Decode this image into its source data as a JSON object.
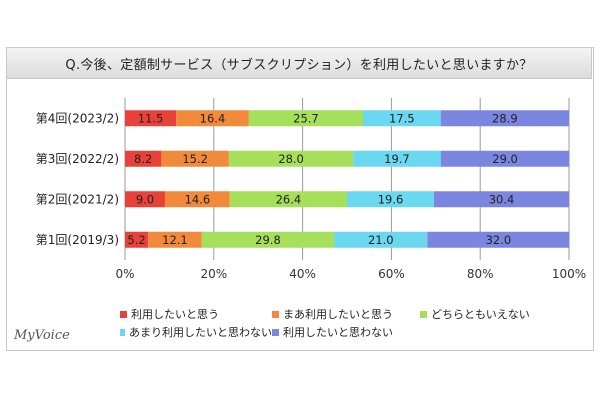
{
  "title": "Q.今後、定額制サービス（サブスクリプション）を利用したいと思いますか？",
  "brand": "MyVoice",
  "colors": {
    "series": [
      "#e8413a",
      "#f28a3c",
      "#a6e05a",
      "#6ad8f0",
      "#7a86e0"
    ]
  },
  "chart_data": {
    "type": "bar",
    "orientation": "horizontal",
    "stacked": true,
    "percent_stacked": true,
    "categories": [
      "第4回(2023/2)",
      "第3回(2022/2)",
      "第2回(2021/2)",
      "第1回(2019/3)"
    ],
    "series": [
      {
        "name": "利用したいと思う",
        "values": [
          11.5,
          8.2,
          9.0,
          5.2
        ]
      },
      {
        "name": "まあ利用したいと思う",
        "values": [
          16.4,
          15.2,
          14.6,
          12.1
        ]
      },
      {
        "name": "どちらともいえない",
        "values": [
          25.7,
          28.0,
          26.4,
          29.8
        ]
      },
      {
        "name": "あまり利用したいと思わない",
        "values": [
          17.5,
          19.7,
          19.6,
          21.0
        ]
      },
      {
        "name": "利用したいと思わない",
        "values": [
          28.9,
          29.0,
          30.4,
          32.0
        ]
      }
    ],
    "xlim": [
      0,
      100
    ],
    "xticks": [
      "0%",
      "20%",
      "40%",
      "60%",
      "80%",
      "100%"
    ],
    "grid": true,
    "legend_position": "bottom"
  }
}
